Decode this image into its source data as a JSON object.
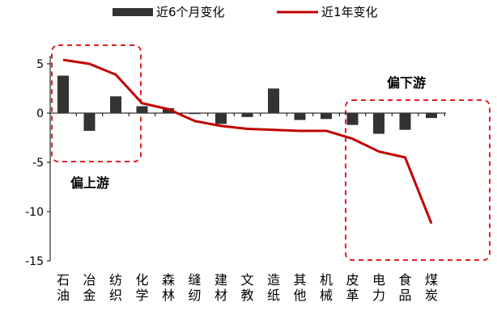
{
  "chart_data": {
    "type": "bar",
    "categories": [
      "石油",
      "冶金",
      "纺织",
      "化学",
      "森林",
      "缝纫",
      "建材",
      "文教",
      "造纸",
      "其他",
      "机械",
      "皮革",
      "电力",
      "食品",
      "煤炭"
    ],
    "series": [
      {
        "name": "近6个月变化",
        "type": "bar",
        "color": "#333333",
        "values": [
          3.8,
          -1.8,
          1.7,
          0.7,
          0.5,
          -0.1,
          -1.1,
          -0.4,
          2.5,
          -0.7,
          -0.6,
          -1.2,
          -2.1,
          -1.7,
          -0.5
        ]
      },
      {
        "name": "近1年变化",
        "type": "line",
        "color": "#c00000",
        "values": [
          5.4,
          5.0,
          3.9,
          1.0,
          0.4,
          -0.8,
          -1.3,
          -1.6,
          -1.7,
          -1.8,
          -1.8,
          -2.6,
          -3.9,
          -4.5,
          -11.2
        ]
      }
    ],
    "ylim": [
      -15,
      8
    ],
    "yticks": [
      5,
      0,
      -5,
      -10,
      -15
    ],
    "legend_position": "top-center",
    "annotations": [
      {
        "text": "偏上游",
        "box_categories": [
          "石油",
          "纺织"
        ],
        "color": "#e02020"
      },
      {
        "text": "偏下游",
        "box_categories": [
          "机械",
          "煤炭"
        ],
        "color": "#e02020"
      }
    ]
  }
}
